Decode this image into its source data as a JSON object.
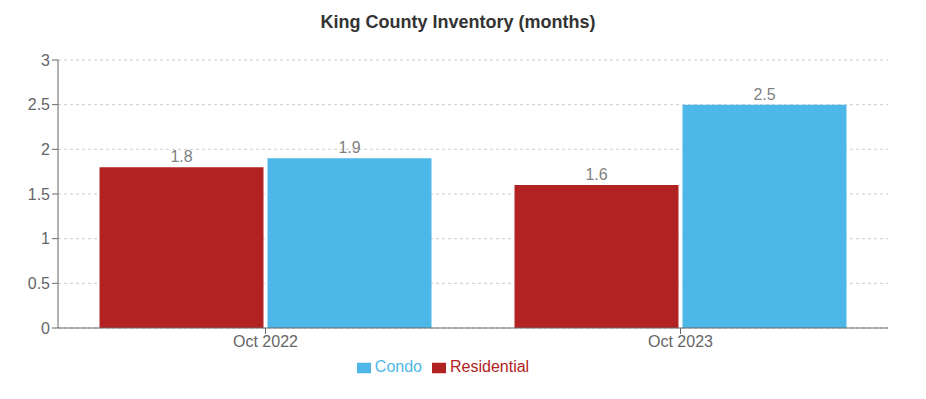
{
  "chart_data": {
    "type": "bar",
    "title": "King County Inventory (months)",
    "categories": [
      "Oct 2022",
      "Oct 2023"
    ],
    "series": [
      {
        "name": "Residential",
        "color": "#B22222",
        "values": [
          1.8,
          1.6
        ]
      },
      {
        "name": "Condo",
        "color": "#4DB8E8",
        "values": [
          1.9,
          2.5
        ]
      }
    ],
    "ylim": [
      0,
      3
    ],
    "yticks": [
      0,
      0.5,
      1,
      1.5,
      2,
      2.5,
      3
    ],
    "grid": true,
    "legend": "bottom",
    "data_labels": true
  }
}
